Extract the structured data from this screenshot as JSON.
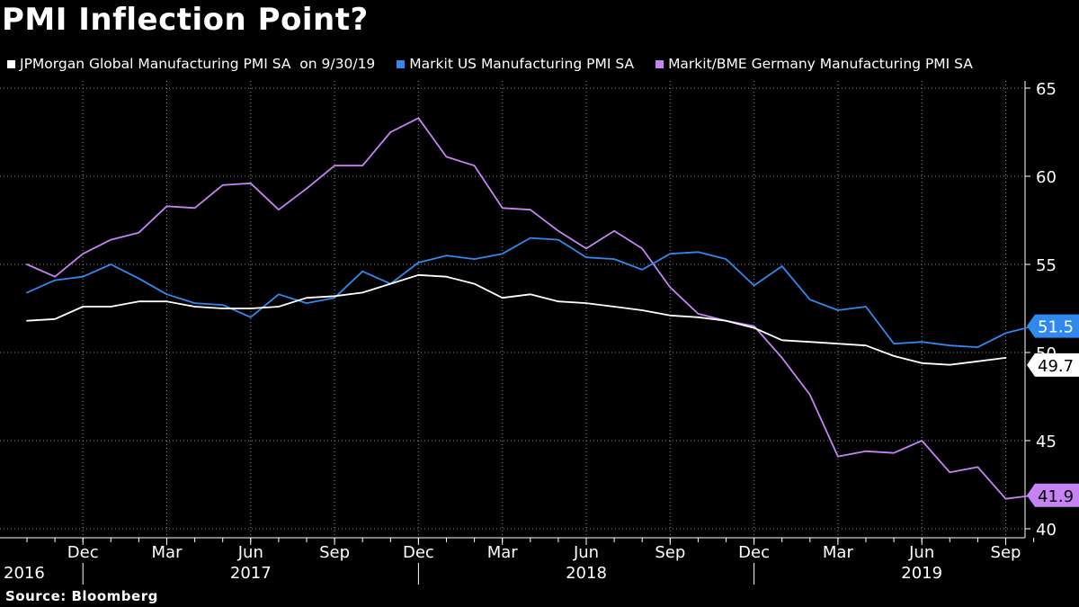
{
  "chart_data": {
    "type": "line",
    "title": "PMI Inflection Point?",
    "source": "Source: Bloomberg",
    "ylim": [
      40,
      65
    ],
    "yticks": [
      40,
      45,
      50,
      55,
      60,
      65
    ],
    "x": [
      "2016-10",
      "2016-11",
      "2016-12",
      "2017-01",
      "2017-02",
      "2017-03",
      "2017-04",
      "2017-05",
      "2017-06",
      "2017-07",
      "2017-08",
      "2017-09",
      "2017-10",
      "2017-11",
      "2017-12",
      "2018-01",
      "2018-02",
      "2018-03",
      "2018-04",
      "2018-05",
      "2018-06",
      "2018-07",
      "2018-08",
      "2018-09",
      "2018-10",
      "2018-11",
      "2018-12",
      "2019-01",
      "2019-02",
      "2019-03",
      "2019-04",
      "2019-05",
      "2019-06",
      "2019-07",
      "2019-08",
      "2019-09",
      "2019-10"
    ],
    "x_tick_labels": [
      {
        "index": 2,
        "label": "Dec"
      },
      {
        "index": 5,
        "label": "Mar"
      },
      {
        "index": 8,
        "label": "Jun"
      },
      {
        "index": 11,
        "label": "Sep"
      },
      {
        "index": 14,
        "label": "Dec"
      },
      {
        "index": 17,
        "label": "Mar"
      },
      {
        "index": 20,
        "label": "Jun"
      },
      {
        "index": 23,
        "label": "Sep"
      },
      {
        "index": 26,
        "label": "Dec"
      },
      {
        "index": 29,
        "label": "Mar"
      },
      {
        "index": 32,
        "label": "Jun"
      },
      {
        "index": 35,
        "label": "Sep"
      }
    ],
    "year_labels": [
      {
        "index": 0,
        "label": "2016"
      },
      {
        "index": 8,
        "label": "2017"
      },
      {
        "index": 20,
        "label": "2018"
      },
      {
        "index": 32,
        "label": "2019"
      }
    ],
    "year_dividers": [
      2,
      14,
      26
    ],
    "series": [
      {
        "name": "JPMorgan Global Manufacturing PMI SA  on 9/30/19",
        "color": "#ffffff",
        "last_label": "49.7",
        "values": [
          51.8,
          51.9,
          52.6,
          52.6,
          52.9,
          52.9,
          52.6,
          52.5,
          52.5,
          52.6,
          53.1,
          53.2,
          53.4,
          53.9,
          54.4,
          54.3,
          53.9,
          53.1,
          53.3,
          52.9,
          52.8,
          52.6,
          52.4,
          52.1,
          52.0,
          51.8,
          51.4,
          50.7,
          50.6,
          50.5,
          50.4,
          49.8,
          49.4,
          49.3,
          49.5,
          49.7,
          null
        ]
      },
      {
        "name": "Markit US Manufacturing PMI SA",
        "color": "#2f89ef",
        "last_label": "51.5",
        "values": [
          53.4,
          54.1,
          54.3,
          55.0,
          54.2,
          53.3,
          52.8,
          52.7,
          52.0,
          53.3,
          52.8,
          53.1,
          54.6,
          53.9,
          55.1,
          55.5,
          55.3,
          55.6,
          56.5,
          56.4,
          55.4,
          55.3,
          54.7,
          55.6,
          55.7,
          55.3,
          53.8,
          54.9,
          53.0,
          52.4,
          52.6,
          50.5,
          50.6,
          50.4,
          50.3,
          51.1,
          51.5
        ]
      },
      {
        "name": "Markit/BME Germany Manufacturing PMI SA",
        "color": "#c583f5",
        "last_label": "41.9",
        "values": [
          55.0,
          54.3,
          55.6,
          56.4,
          56.8,
          58.3,
          58.2,
          59.5,
          59.6,
          58.1,
          59.3,
          60.6,
          60.6,
          62.5,
          63.3,
          61.1,
          60.6,
          58.2,
          58.1,
          56.9,
          55.9,
          56.9,
          55.9,
          53.7,
          52.2,
          51.8,
          51.5,
          49.7,
          47.6,
          44.1,
          44.4,
          44.3,
          45.0,
          43.2,
          43.5,
          41.7,
          41.9
        ]
      }
    ]
  }
}
